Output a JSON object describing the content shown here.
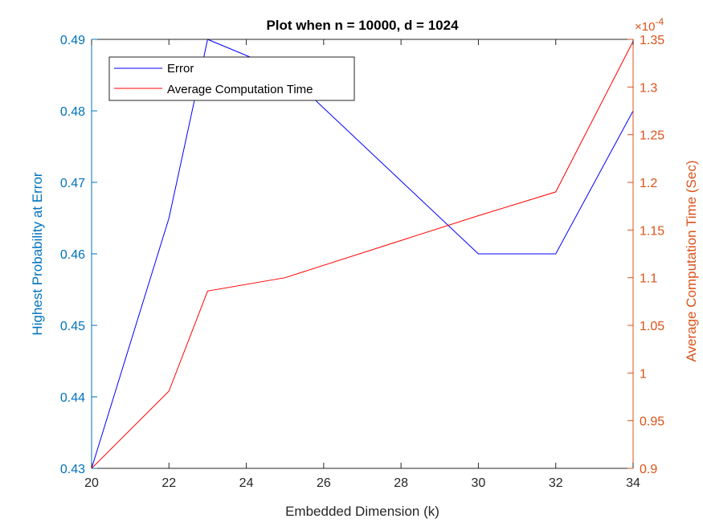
{
  "chart_data": {
    "type": "line",
    "title": "Plot when n = 10000, d = 1024",
    "xlabel": "Embedded Dimension (k)",
    "ylabel_left": "Highest Probability at Error",
    "ylabel_right": "Average Computation Time (Sec)",
    "right_axis_exponent": "-4",
    "xlim": [
      20,
      34
    ],
    "ylim_left": [
      0.43,
      0.49
    ],
    "ylim_right": [
      0.9,
      1.35
    ],
    "x_ticks": [
      20,
      22,
      24,
      26,
      28,
      30,
      32,
      34
    ],
    "y_left_ticks": [
      "0.43",
      "0.44",
      "0.45",
      "0.46",
      "0.47",
      "0.48",
      "0.49"
    ],
    "y_right_ticks": [
      "0.9",
      "0.95",
      "1",
      "1.05",
      "1.1",
      "1.15",
      "1.2",
      "1.25",
      "1.3",
      "1.35"
    ],
    "series": [
      {
        "name": "Error",
        "axis": "left",
        "color": "#0000ff",
        "x": [
          20,
          22,
          23,
          25,
          30,
          32,
          34
        ],
        "y": [
          0.43,
          0.465,
          0.49,
          0.4855,
          0.46,
          0.46,
          0.48
        ]
      },
      {
        "name": "Average Computation Time",
        "axis": "right",
        "color": "#ff0000",
        "x": [
          20,
          22,
          23,
          25,
          30,
          32,
          34
        ],
        "y": [
          0.9,
          0.981,
          1.086,
          1.1,
          1.165,
          1.19,
          1.348
        ]
      }
    ],
    "legend_position": "top-left",
    "left_axis_color": "#0072bd",
    "right_axis_color": "#d95319",
    "grid": false
  }
}
